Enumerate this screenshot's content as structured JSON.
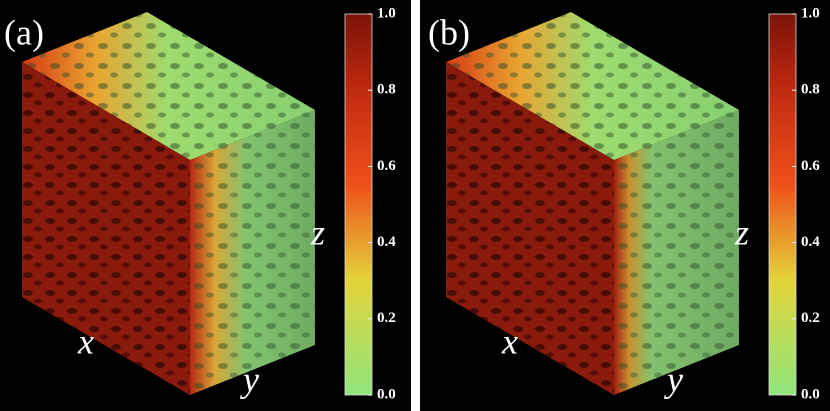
{
  "panels": [
    {
      "label": "(a)",
      "axes": {
        "x": "x",
        "y": "y",
        "z": "z"
      },
      "colorbar": {
        "lim": [
          0,
          1
        ],
        "ticks": [
          {
            "value": 0,
            "label": "0.0"
          },
          {
            "value": 0.2,
            "label": "0.2"
          },
          {
            "value": 0.4,
            "label": "0.4"
          },
          {
            "value": 0.6,
            "label": "0.6"
          },
          {
            "value": 0.8,
            "label": "0.8"
          },
          {
            "value": 1,
            "label": "1.0"
          }
        ]
      }
    },
    {
      "label": "(b)",
      "axes": {
        "x": "x",
        "y": "y",
        "z": "z"
      },
      "colorbar": {
        "lim": [
          0,
          1
        ],
        "ticks": [
          {
            "value": 0,
            "label": "0.0"
          },
          {
            "value": 0.2,
            "label": "0.2"
          },
          {
            "value": 0.4,
            "label": "0.4"
          },
          {
            "value": 0.6,
            "label": "0.6"
          },
          {
            "value": 0.8,
            "label": "0.8"
          },
          {
            "value": 1,
            "label": "1.0"
          }
        ]
      }
    }
  ]
}
